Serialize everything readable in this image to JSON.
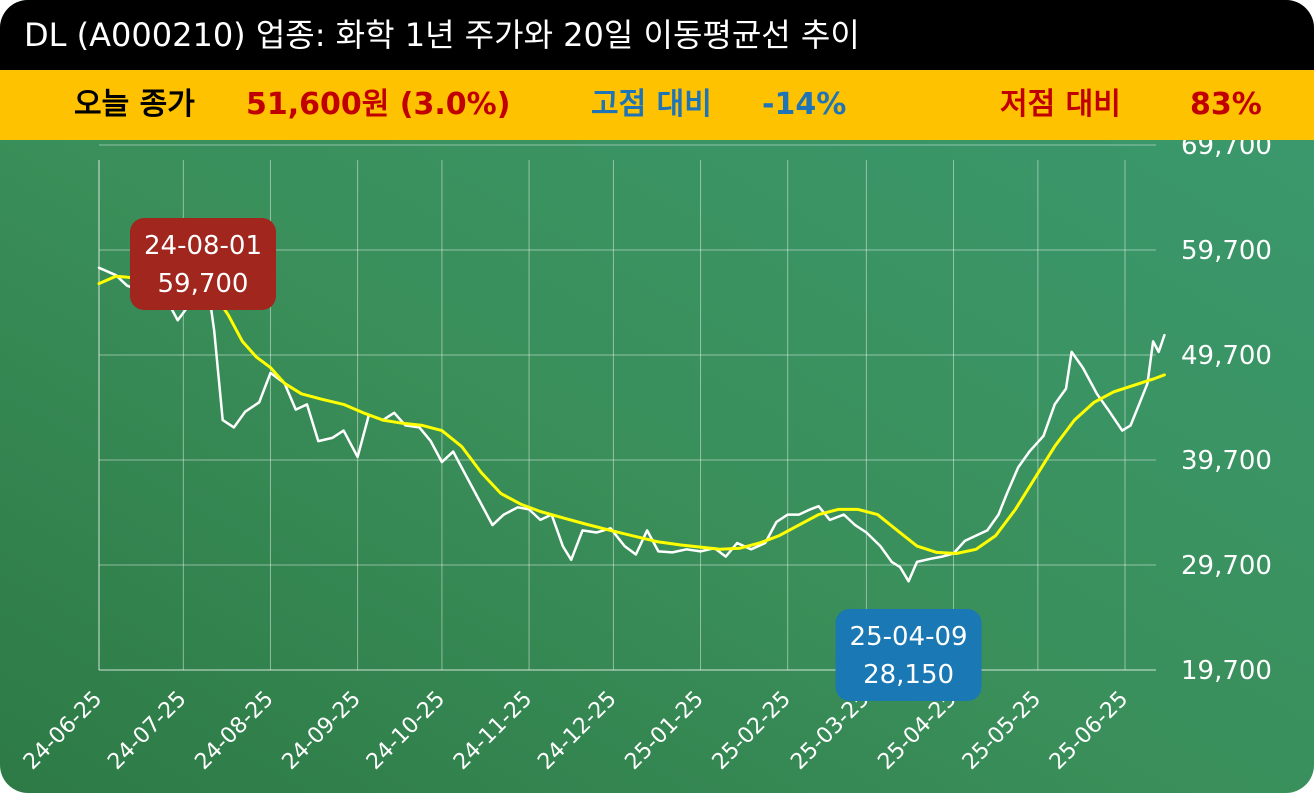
{
  "title": "DL (A000210) 업종: 화학 1년 주가와 20일 이동평균선 추이",
  "stats": {
    "close_label": "오늘 종가",
    "close_value": "51,600원 (3.0%)",
    "high_label": "고점 대비",
    "high_value": "-14%",
    "low_label": "저점 대비",
    "low_value": "83%"
  },
  "colors": {
    "title_bg": "#000000",
    "stat_bg": "#ffc200",
    "close": "#c00000",
    "high": "#1f74b8",
    "low": "#c00000",
    "price_line": "#ffffff",
    "ma_line": "#ffff00",
    "high_callout": "#a0261e",
    "low_callout": "#1a78b4"
  },
  "chart_data": {
    "type": "line",
    "x_ticks": [
      "24-06-25",
      "24-07-25",
      "24-08-25",
      "24-09-25",
      "24-10-25",
      "24-11-25",
      "24-12-25",
      "25-01-25",
      "25-02-25",
      "25-03-25",
      "25-04-25",
      "25-05-25",
      "25-06-25"
    ],
    "y_ticks": [
      "69,700",
      "59,700",
      "49,700",
      "39,700",
      "29,700",
      "19,700"
    ],
    "ylim": [
      19700,
      69700
    ],
    "grid": true,
    "series": [
      {
        "kind": "price",
        "points": [
          [
            "24-06-25",
            58000
          ],
          [
            "24-07-01",
            57300
          ],
          [
            "24-07-05",
            56300
          ],
          [
            "24-07-10",
            55800
          ],
          [
            "24-07-15",
            57500
          ],
          [
            "24-07-20",
            54500
          ],
          [
            "24-07-23",
            53000
          ],
          [
            "24-07-28",
            54800
          ],
          [
            "24-08-01",
            59700
          ],
          [
            "24-08-05",
            52000
          ],
          [
            "24-08-08",
            43500
          ],
          [
            "24-08-12",
            42800
          ],
          [
            "24-08-16",
            44300
          ],
          [
            "24-08-21",
            45200
          ],
          [
            "24-08-25",
            48000
          ],
          [
            "24-08-30",
            47000
          ],
          [
            "24-09-03",
            44500
          ],
          [
            "24-09-07",
            45000
          ],
          [
            "24-09-11",
            41500
          ],
          [
            "24-09-16",
            41800
          ],
          [
            "24-09-20",
            42500
          ],
          [
            "24-09-25",
            40000
          ],
          [
            "24-09-29",
            44000
          ],
          [
            "24-10-04",
            43500
          ],
          [
            "24-10-08",
            44200
          ],
          [
            "24-10-12",
            43000
          ],
          [
            "24-10-17",
            42800
          ],
          [
            "24-10-21",
            41500
          ],
          [
            "24-10-25",
            39500
          ],
          [
            "24-10-29",
            40500
          ],
          [
            "24-11-02",
            38500
          ],
          [
            "24-11-07",
            36000
          ],
          [
            "24-11-12",
            33500
          ],
          [
            "24-11-16",
            34500
          ],
          [
            "24-11-21",
            35200
          ],
          [
            "24-11-25",
            35000
          ],
          [
            "24-11-29",
            34000
          ],
          [
            "24-12-03",
            34500
          ],
          [
            "24-12-07",
            31500
          ],
          [
            "24-12-10",
            30200
          ],
          [
            "24-12-14",
            33000
          ],
          [
            "24-12-19",
            32800
          ],
          [
            "24-12-24",
            33200
          ],
          [
            "24-12-29",
            31500
          ],
          [
            "25-01-02",
            30700
          ],
          [
            "25-01-06",
            33000
          ],
          [
            "25-01-10",
            31000
          ],
          [
            "25-01-15",
            30900
          ],
          [
            "25-01-20",
            31200
          ],
          [
            "25-01-25",
            31000
          ],
          [
            "25-01-30",
            31300
          ],
          [
            "25-02-03",
            30500
          ],
          [
            "25-02-07",
            31800
          ],
          [
            "25-02-12",
            31200
          ],
          [
            "25-02-17",
            31800
          ],
          [
            "25-02-21",
            33800
          ],
          [
            "25-02-25",
            34500
          ],
          [
            "25-03-01",
            34500
          ],
          [
            "25-03-05",
            35000
          ],
          [
            "25-03-08",
            35300
          ],
          [
            "25-03-12",
            34000
          ],
          [
            "25-03-17",
            34500
          ],
          [
            "25-03-21",
            33500
          ],
          [
            "25-03-25",
            32800
          ],
          [
            "25-03-30",
            31500
          ],
          [
            "25-04-03",
            30000
          ],
          [
            "25-04-06",
            29500
          ],
          [
            "25-04-09",
            28150
          ],
          [
            "25-04-12",
            30000
          ],
          [
            "25-04-17",
            30300
          ],
          [
            "25-04-21",
            30500
          ],
          [
            "25-04-25",
            30800
          ],
          [
            "25-04-29",
            32000
          ],
          [
            "25-05-03",
            32500
          ],
          [
            "25-05-07",
            33000
          ],
          [
            "25-05-11",
            34500
          ],
          [
            "25-05-14",
            36500
          ],
          [
            "25-05-18",
            39000
          ],
          [
            "25-05-22",
            40500
          ],
          [
            "25-05-27",
            42000
          ],
          [
            "25-05-31",
            45000
          ],
          [
            "25-06-04",
            46500
          ],
          [
            "25-06-06",
            50000
          ],
          [
            "25-06-10",
            48500
          ],
          [
            "25-06-15",
            46000
          ],
          [
            "25-06-19",
            44500
          ],
          [
            "25-06-24",
            42500
          ],
          [
            "25-06-27",
            43000
          ],
          [
            "25-06-30",
            45000
          ],
          [
            "25-07-03",
            47000
          ],
          [
            "25-07-05",
            51000
          ],
          [
            "25-07-07",
            50000
          ],
          [
            "25-07-09",
            51600
          ]
        ]
      },
      {
        "kind": "ma20",
        "points": [
          [
            "24-06-25",
            56500
          ],
          [
            "24-07-01",
            57200
          ],
          [
            "24-07-10",
            57000
          ],
          [
            "24-07-20",
            56800
          ],
          [
            "24-07-28",
            56300
          ],
          [
            "24-08-05",
            55500
          ],
          [
            "24-08-10",
            53500
          ],
          [
            "24-08-15",
            51000
          ],
          [
            "24-08-20",
            49500
          ],
          [
            "24-08-25",
            48500
          ],
          [
            "24-08-30",
            47000
          ],
          [
            "24-09-05",
            46000
          ],
          [
            "24-09-12",
            45500
          ],
          [
            "24-09-20",
            45000
          ],
          [
            "24-09-27",
            44200
          ],
          [
            "24-10-04",
            43500
          ],
          [
            "24-10-11",
            43200
          ],
          [
            "24-10-18",
            43000
          ],
          [
            "24-10-25",
            42500
          ],
          [
            "24-11-01",
            41000
          ],
          [
            "24-11-08",
            38500
          ],
          [
            "24-11-15",
            36500
          ],
          [
            "24-11-22",
            35500
          ],
          [
            "24-11-29",
            34800
          ],
          [
            "24-12-07",
            34200
          ],
          [
            "24-12-15",
            33600
          ],
          [
            "24-12-24",
            33000
          ],
          [
            "25-01-02",
            32400
          ],
          [
            "25-01-10",
            31900
          ],
          [
            "25-01-18",
            31600
          ],
          [
            "25-01-25",
            31400
          ],
          [
            "25-02-01",
            31200
          ],
          [
            "25-02-08",
            31300
          ],
          [
            "25-02-15",
            31800
          ],
          [
            "25-02-22",
            32500
          ],
          [
            "25-03-01",
            33500
          ],
          [
            "25-03-08",
            34500
          ],
          [
            "25-03-15",
            35000
          ],
          [
            "25-03-22",
            35000
          ],
          [
            "25-03-29",
            34500
          ],
          [
            "25-04-05",
            33000
          ],
          [
            "25-04-12",
            31500
          ],
          [
            "25-04-19",
            30900
          ],
          [
            "25-04-26",
            30800
          ],
          [
            "25-05-03",
            31200
          ],
          [
            "25-05-10",
            32500
          ],
          [
            "25-05-17",
            35000
          ],
          [
            "25-05-24",
            38000
          ],
          [
            "25-05-31",
            41000
          ],
          [
            "25-06-07",
            43500
          ],
          [
            "25-06-14",
            45200
          ],
          [
            "25-06-21",
            46200
          ],
          [
            "25-06-28",
            46800
          ],
          [
            "25-07-05",
            47400
          ],
          [
            "25-07-09",
            47800
          ]
        ]
      }
    ],
    "annotations": [
      {
        "kind": "high",
        "date": "24-08-01",
        "label_date": "24-08-01",
        "label_value": "59,700"
      },
      {
        "kind": "low",
        "date": "25-04-09",
        "label_date": "25-04-09",
        "label_value": "28,150"
      }
    ]
  }
}
